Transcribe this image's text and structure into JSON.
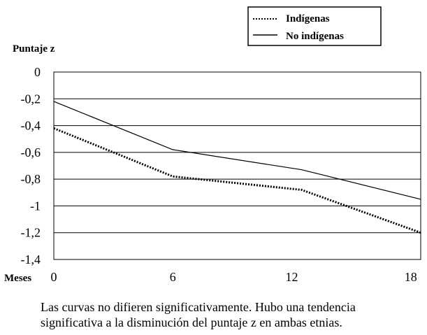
{
  "chart_data": {
    "type": "line",
    "ylabel": "Puntaje z",
    "xlabel": "Meses",
    "x_ticks": [
      "0",
      "6",
      "12",
      "18"
    ],
    "y_ticks": [
      "0",
      "-0,2",
      "-0,4",
      "-0,6",
      "-0,8",
      "-1",
      "-1,2",
      "-1,4"
    ],
    "ylim": [
      -1.4,
      0
    ],
    "xlim": [
      0,
      18.5
    ],
    "grid": "horizontal",
    "legend_position": "top-right",
    "series": [
      {
        "name": "Indígenas",
        "style": "dotted",
        "color": "#000000",
        "points": [
          [
            0,
            -0.42
          ],
          [
            6,
            -0.78
          ],
          [
            12.5,
            -0.88
          ],
          [
            18.5,
            -1.2
          ]
        ]
      },
      {
        "name": "No indígenas",
        "style": "solid",
        "color": "#000000",
        "points": [
          [
            0,
            -0.22
          ],
          [
            6,
            -0.58
          ],
          [
            12.5,
            -0.73
          ],
          [
            18.5,
            -0.95
          ]
        ]
      }
    ]
  },
  "caption": {
    "line1": "Las curvas no difieren significativamente. Hubo una tendencia",
    "line2": "significativa a la disminución del puntaje z en ambas etnias."
  }
}
